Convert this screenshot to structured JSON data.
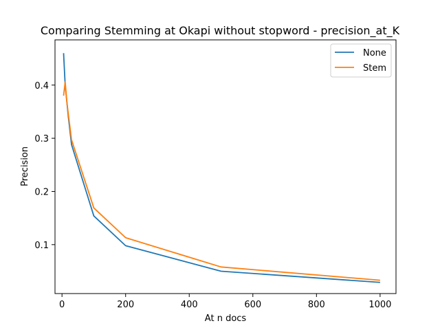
{
  "chart_data": {
    "type": "line",
    "title": "Comparing Stemming at Okapi without stopword - precision_at_K",
    "xlabel": "At n docs",
    "ylabel": "Precision",
    "xlim": [
      -22,
      1050
    ],
    "ylim": [
      0.008,
      0.485
    ],
    "xticks": [
      0,
      200,
      400,
      600,
      800,
      1000
    ],
    "yticks": [
      0.1,
      0.2,
      0.3,
      0.4
    ],
    "grid": false,
    "legend_position": "top-right",
    "x": [
      5,
      10,
      15,
      20,
      30,
      100,
      200,
      500,
      1000
    ],
    "series": [
      {
        "name": "None",
        "color": "#1f77b4",
        "values": [
          0.46,
          0.4,
          0.37,
          0.34,
          0.288,
          0.154,
          0.098,
          0.05,
          0.029
        ]
      },
      {
        "name": "Stem",
        "color": "#ff7f0e",
        "values": [
          0.38,
          0.406,
          0.37,
          0.345,
          0.297,
          0.169,
          0.113,
          0.058,
          0.033
        ]
      }
    ]
  }
}
